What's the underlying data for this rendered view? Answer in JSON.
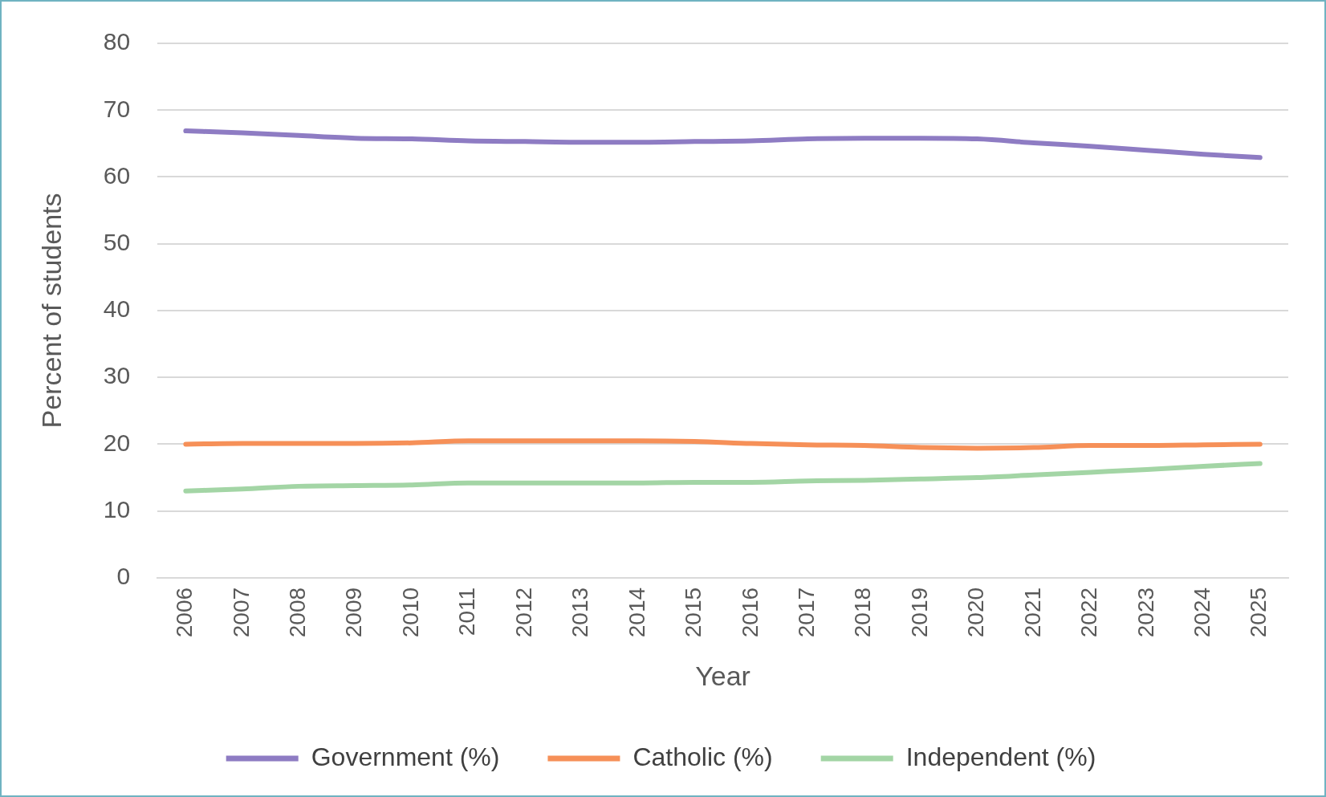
{
  "chart_data": {
    "type": "line",
    "xlabel": "Year",
    "ylabel": "Percent of students",
    "categories": [
      "2006",
      "2007",
      "2008",
      "2009",
      "2010",
      "2011",
      "2012",
      "2013",
      "2014",
      "2015",
      "2016",
      "2017",
      "2018",
      "2019",
      "2020",
      "2021",
      "2022",
      "2023",
      "2024",
      "2025"
    ],
    "series": [
      {
        "name": "Government (%)",
        "color": "#8e7cc3",
        "values": [
          66.9,
          66.6,
          66.2,
          65.8,
          65.7,
          65.4,
          65.3,
          65.2,
          65.2,
          65.3,
          65.4,
          65.7,
          65.8,
          65.8,
          65.7,
          65.1,
          64.6,
          64.0,
          63.4,
          62.9
        ]
      },
      {
        "name": "Catholic (%)",
        "color": "#f69058",
        "values": [
          20.0,
          20.1,
          20.1,
          20.1,
          20.2,
          20.5,
          20.5,
          20.5,
          20.5,
          20.4,
          20.1,
          19.9,
          19.8,
          19.5,
          19.4,
          19.5,
          19.8,
          19.8,
          19.9,
          20.0
        ]
      },
      {
        "name": "Independent (%)",
        "color": "#a3d5a5",
        "values": [
          13.0,
          13.3,
          13.7,
          13.8,
          13.9,
          14.2,
          14.2,
          14.2,
          14.2,
          14.3,
          14.3,
          14.5,
          14.6,
          14.8,
          15.0,
          15.4,
          15.8,
          16.2,
          16.7,
          17.1
        ]
      }
    ],
    "ylim": [
      0,
      80
    ],
    "yticks": [
      0,
      10,
      20,
      30,
      40,
      50,
      60,
      70,
      80
    ],
    "grid": "y",
    "legend": "bottom",
    "marker": "none",
    "line_style": "solid"
  }
}
